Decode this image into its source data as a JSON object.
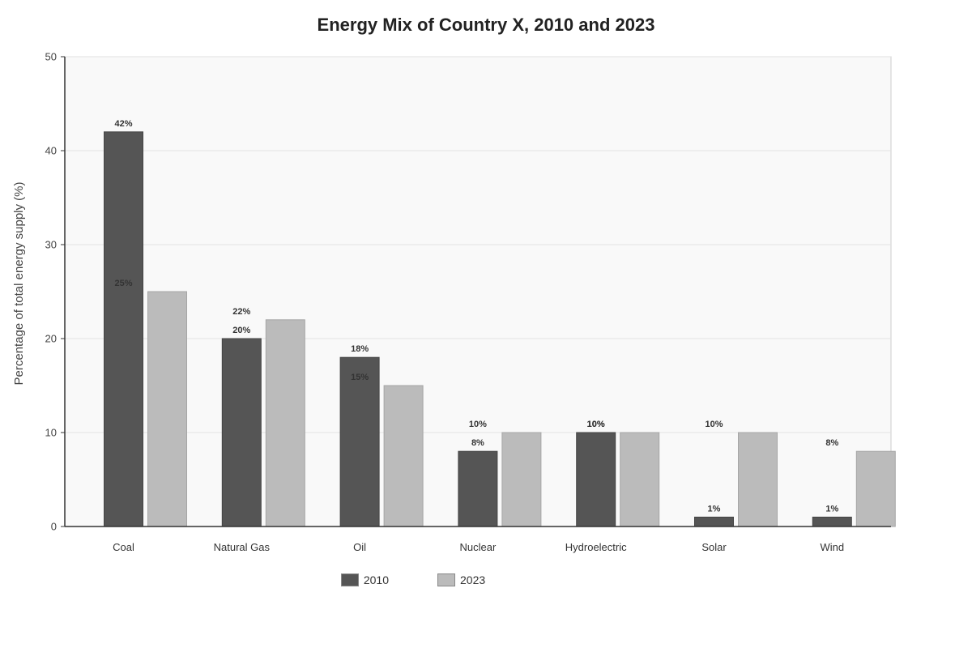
{
  "chart_data": {
    "type": "bar",
    "title": "Energy Mix of Country X, 2010 and 2023",
    "xlabel": "",
    "ylabel": "Percentage of total energy supply (%)",
    "ylim": [
      0,
      50
    ],
    "yticks": [
      0,
      10,
      20,
      30,
      40,
      50
    ],
    "grid": true,
    "legend_position": "bottom",
    "categories": [
      "Coal",
      "Natural Gas",
      "Oil",
      "Nuclear",
      "Hydroelectric",
      "Solar",
      "Wind"
    ],
    "series": [
      {
        "name": "2010",
        "color": "#555555",
        "values": [
          42,
          20,
          18,
          8,
          10,
          1,
          1
        ],
        "labels": [
          "42%",
          "20%",
          "18%",
          "8%",
          "10%",
          "1%",
          "1%"
        ]
      },
      {
        "name": "2023",
        "color": "#bbbbbb",
        "values": [
          25,
          22,
          15,
          10,
          10,
          10,
          8
        ],
        "labels": [
          "25%",
          "22%",
          "15%",
          "10%",
          "10%",
          "10%",
          "8%"
        ]
      }
    ]
  },
  "legend": {
    "item_2010": "2010",
    "item_2023": "2023"
  },
  "colors": {
    "plot_background": "#f9f9f9",
    "grid": "#e2e2e2",
    "axis": "#333333",
    "series_2010": "#555555",
    "series_2023": "#bbbbbb"
  }
}
